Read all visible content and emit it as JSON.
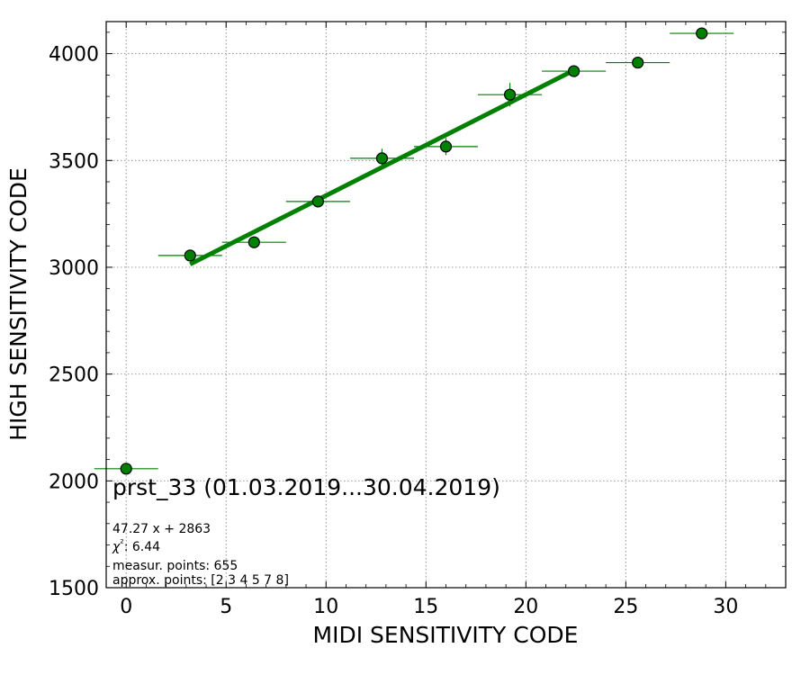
{
  "chart_data": {
    "type": "scatter",
    "title": "prst_33 (01.03.2019...30.04.2019)",
    "xlabel": "MIDI SENSITIVITY CODE",
    "ylabel": "HIGH SENSITIVITY CODE",
    "xlim": [
      -1,
      33
    ],
    "ylim": [
      1500,
      4150
    ],
    "xticks": [
      0,
      5,
      10,
      15,
      20,
      25,
      30
    ],
    "yticks": [
      1500,
      2000,
      2500,
      3000,
      3500,
      4000
    ],
    "grid": true,
    "colors": {
      "marker": "#008000",
      "fit_line": "#008000",
      "error_bar": "#008000"
    },
    "points": [
      {
        "x": 0.0,
        "y": 2057,
        "xerr": 1.6,
        "yerr": 0
      },
      {
        "x": 3.2,
        "y": 3055,
        "xerr": 1.6,
        "yerr": 0
      },
      {
        "x": 6.4,
        "y": 3117,
        "xerr": 1.6,
        "yerr": 0
      },
      {
        "x": 9.6,
        "y": 3308,
        "xerr": 1.6,
        "yerr": 0
      },
      {
        "x": 12.8,
        "y": 3510,
        "xerr": 1.6,
        "yerr": 45
      },
      {
        "x": 16.0,
        "y": 3565,
        "xerr": 1.6,
        "yerr": 40
      },
      {
        "x": 19.2,
        "y": 3808,
        "xerr": 1.6,
        "yerr": 55
      },
      {
        "x": 22.4,
        "y": 3918,
        "xerr": 1.6,
        "yerr": 0
      },
      {
        "x": 25.6,
        "y": 3958,
        "xerr": 1.6,
        "yerr": 25
      },
      {
        "x": 28.8,
        "y": 4095,
        "xerr": 1.6,
        "yerr": 0
      }
    ],
    "fit": {
      "slope": 47.27,
      "intercept": 2863,
      "x_range": [
        3.2,
        22.4
      ]
    },
    "annotations": [
      "47.27 x + 2863",
      "χ²: 6.44",
      "measur. points: 655",
      "approx. points: [2 3 4 5 7 8]"
    ]
  }
}
